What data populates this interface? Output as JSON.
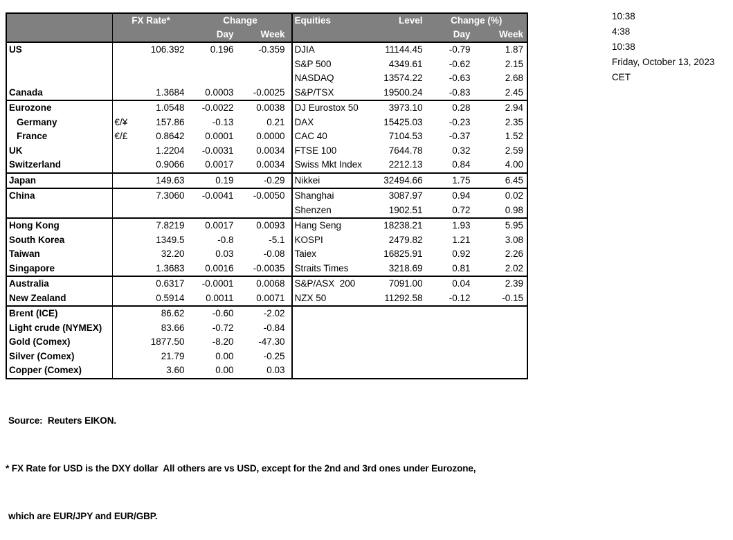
{
  "colors": {
    "header_bg": "#808080",
    "header_text": "#ffffff",
    "border": "#000000"
  },
  "table": {
    "header": {
      "fx": {
        "rate": "FX Rate*",
        "change": "Change",
        "day": "Day",
        "week": "Week"
      },
      "eq": {
        "title": "Equities",
        "level": "Level",
        "change": "Change (%)",
        "day": "Day",
        "week": "Week"
      }
    },
    "rows": [
      {
        "name": "US",
        "pair": "",
        "rate": "106.392",
        "day": "0.196",
        "week": "-0.359",
        "eq": "DJIA",
        "level": "11144.45",
        "eday": "-0.79",
        "eweek": "1.87"
      },
      {
        "name": "",
        "pair": "",
        "rate": "",
        "day": "",
        "week": "",
        "eq": "S&P 500",
        "level": "4349.61",
        "eday": "-0.62",
        "eweek": "2.15"
      },
      {
        "name": "",
        "pair": "",
        "rate": "",
        "day": "",
        "week": "",
        "eq": "NASDAQ",
        "level": "13574.22",
        "eday": "-0.63",
        "eweek": "2.68"
      },
      {
        "name": "Canada",
        "pair": "",
        "rate": "1.3684",
        "day": "0.0003",
        "week": "-0.0025",
        "eq": "S&P/TSX",
        "level": "19500.24",
        "eday": "-0.83",
        "eweek": "2.45"
      },
      {
        "sep": true,
        "name": "Eurozone",
        "pair": "",
        "rate": "1.0548",
        "day": "-0.0022",
        "week": "0.0038",
        "eq": "DJ Eurostox 50",
        "level": "3973.10",
        "eday": "0.28",
        "eweek": "2.94"
      },
      {
        "indent": true,
        "name": "Germany",
        "pair": "€/¥",
        "rate": "157.86",
        "day": "-0.13",
        "week": "0.21",
        "eq": "DAX",
        "level": "15425.03",
        "eday": "-0.23",
        "eweek": "2.35"
      },
      {
        "indent": true,
        "name": "France",
        "pair": "€/£",
        "rate": "0.8642",
        "day": "0.0001",
        "week": "0.0000",
        "eq": "CAC 40",
        "level": "7104.53",
        "eday": "-0.37",
        "eweek": "1.52"
      },
      {
        "name": "UK",
        "pair": "",
        "rate": "1.2204",
        "day": "-0.0031",
        "week": "0.0034",
        "eq": "FTSE 100",
        "level": "7644.78",
        "eday": "0.32",
        "eweek": "2.59"
      },
      {
        "name": "Switzerland",
        "pair": "",
        "rate": "0.9066",
        "day": "0.0017",
        "week": "0.0034",
        "eq": "Swiss Mkt Index",
        "level": "2212.13",
        "eday": "0.84",
        "eweek": "4.00"
      },
      {
        "sep": true,
        "name": "Japan",
        "pair": "",
        "rate": "149.63",
        "day": "0.19",
        "week": "-0.29",
        "eq": "Nikkei",
        "level": "32494.66",
        "eday": "1.75",
        "eweek": "6.45"
      },
      {
        "sep": true,
        "name": "China",
        "pair": "",
        "rate": "7.3060",
        "day": "-0.0041",
        "week": "-0.0050",
        "eq": "Shanghai",
        "level": "3087.97",
        "eday": "0.94",
        "eweek": "0.02"
      },
      {
        "name": "",
        "pair": "",
        "rate": "",
        "day": "",
        "week": "",
        "eq": "Shenzen",
        "level": "1902.51",
        "eday": "0.72",
        "eweek": "0.98"
      },
      {
        "sep": true,
        "name": "Hong Kong",
        "pair": "",
        "rate": "7.8219",
        "day": "0.0017",
        "week": "0.0093",
        "eq": "Hang Seng",
        "level": "18238.21",
        "eday": "1.93",
        "eweek": "5.95"
      },
      {
        "name": "South Korea",
        "pair": "",
        "rate": "1349.5",
        "day": "-0.8",
        "week": "-5.1",
        "eq": "KOSPI",
        "level": "2479.82",
        "eday": "1.21",
        "eweek": "3.08"
      },
      {
        "name": "Taiwan",
        "pair": "",
        "rate": "32.20",
        "day": "0.03",
        "week": "-0.08",
        "eq": "Taiex",
        "level": "16825.91",
        "eday": "0.92",
        "eweek": "2.26"
      },
      {
        "name": "Singapore",
        "pair": "",
        "rate": "1.3683",
        "day": "0.0016",
        "week": "-0.0035",
        "eq": "Straits Times",
        "level": "3218.69",
        "eday": "0.81",
        "eweek": "2.02"
      },
      {
        "sep": true,
        "name": "Australia",
        "pair": "",
        "rate": "0.6317",
        "day": "-0.0001",
        "week": "0.0068",
        "eq": "S&P/ASX  200",
        "level": "7091.00",
        "eday": "0.04",
        "eweek": "2.39"
      },
      {
        "name": "New Zealand",
        "pair": "",
        "rate": "0.5914",
        "day": "0.0011",
        "week": "0.0071",
        "eq": "NZX 50",
        "level": "11292.58",
        "eday": "-0.12",
        "eweek": "-0.15"
      },
      {
        "sep": true,
        "name": "Brent (ICE)",
        "pair": "",
        "rate": "86.62",
        "day": "-0.60",
        "week": "-2.02",
        "eq": "",
        "level": "",
        "eday": "",
        "eweek": ""
      },
      {
        "name": "Light crude (NYMEX)",
        "pair": "",
        "rate": "83.66",
        "day": "-0.72",
        "week": "-0.84",
        "eq": "",
        "level": "",
        "eday": "",
        "eweek": ""
      },
      {
        "name": "Gold (Comex)",
        "pair": "",
        "rate": "1877.50",
        "day": "-8.20",
        "week": "-47.30",
        "eq": "",
        "level": "",
        "eday": "",
        "eweek": ""
      },
      {
        "name": "Silver (Comex)",
        "pair": "",
        "rate": "21.79",
        "day": "0.00",
        "week": "-0.25",
        "eq": "",
        "level": "",
        "eday": "",
        "eweek": ""
      },
      {
        "name": "Copper (Comex)",
        "pair": "",
        "rate": "3.60",
        "day": "0.00",
        "week": "0.03",
        "eq": "",
        "level": "",
        "eday": "",
        "eweek": ""
      }
    ]
  },
  "times": [
    "10:38",
    "4:38",
    "10:38",
    "Friday, October 13, 2023",
    "CET"
  ],
  "footer": {
    "source": "Source:  Reuters EIKON.",
    "note1": "* FX Rate for USD is the DXY dollar  All others are vs USD, except for the 2nd and 3rd ones under Eurozone,",
    "note2": "which are EUR/JPY and EUR/GBP."
  }
}
